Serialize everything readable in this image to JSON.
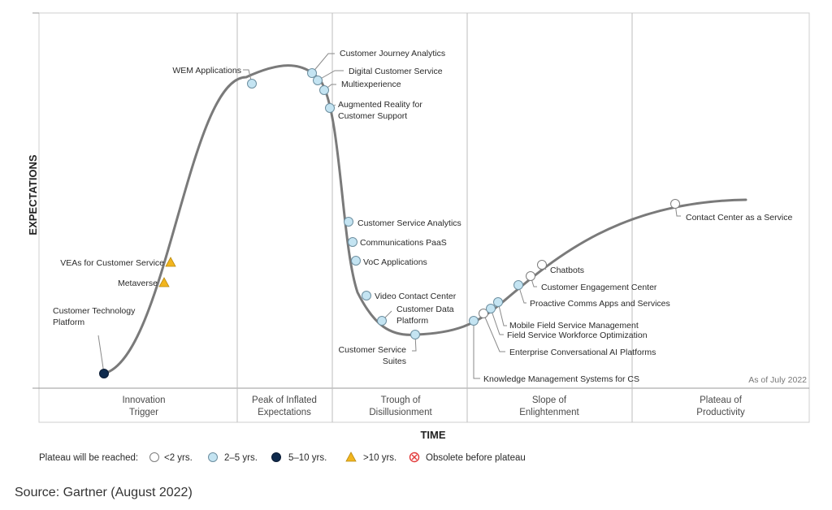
{
  "chart_data": {
    "type": "scatter",
    "title": "",
    "ylabel": "EXPECTATIONS",
    "xlabel": "TIME",
    "as_of": "As of July 2022",
    "phases": [
      {
        "lines": [
          "Innovation",
          "Trigger"
        ]
      },
      {
        "lines": [
          "Peak of Inflated",
          "Expectations"
        ]
      },
      {
        "lines": [
          "Trough of",
          "Disillusionment"
        ]
      },
      {
        "lines": [
          "Slope of",
          "Enlightenment"
        ]
      },
      {
        "lines": [
          "Plateau of",
          "Productivity"
        ]
      }
    ],
    "points": [
      {
        "name": [
          "Customer Technology",
          "Platform"
        ],
        "category": "5-10"
      },
      {
        "name": [
          "Metaverse"
        ],
        "category": "10+"
      },
      {
        "name": [
          "VEAs for Customer Service"
        ],
        "category": "10+"
      },
      {
        "name": [
          "WEM Applications"
        ],
        "category": "2-5"
      },
      {
        "name": [
          "Customer Journey Analytics"
        ],
        "category": "2-5"
      },
      {
        "name": [
          "Digital Customer Service"
        ],
        "category": "2-5"
      },
      {
        "name": [
          "Multiexperience"
        ],
        "category": "2-5"
      },
      {
        "name": [
          "Augmented Reality for",
          "Customer Support"
        ],
        "category": "2-5"
      },
      {
        "name": [
          "Customer Service Analytics"
        ],
        "category": "2-5"
      },
      {
        "name": [
          "Communications PaaS"
        ],
        "category": "2-5"
      },
      {
        "name": [
          "VoC Applications"
        ],
        "category": "2-5"
      },
      {
        "name": [
          "Video Contact Center"
        ],
        "category": "2-5"
      },
      {
        "name": [
          "Customer Data",
          "Platform"
        ],
        "category": "2-5"
      },
      {
        "name": [
          "Customer Service",
          "Suites"
        ],
        "category": "2-5"
      },
      {
        "name": [
          "Knowledge Management Systems for CS"
        ],
        "category": "2-5"
      },
      {
        "name": [
          "Enterprise Conversational AI Platforms"
        ],
        "category": "<2"
      },
      {
        "name": [
          "Field Service Workforce Optimization"
        ],
        "category": "2-5"
      },
      {
        "name": [
          "Mobile Field Service Management"
        ],
        "category": "2-5"
      },
      {
        "name": [
          "Proactive Comms Apps and Services"
        ],
        "category": "2-5"
      },
      {
        "name": [
          "Customer Engagement Center"
        ],
        "category": "<2"
      },
      {
        "name": [
          "Chatbots"
        ],
        "category": "<2"
      },
      {
        "name": [
          "Contact Center as a Service"
        ],
        "category": "<2"
      }
    ]
  },
  "legend": {
    "title": "Plateau will be reached:",
    "items": [
      {
        "key": "<2",
        "label": "<2 yrs."
      },
      {
        "key": "2-5",
        "label": "2–5 yrs."
      },
      {
        "key": "5-10",
        "label": "5–10 yrs."
      },
      {
        "key": "10+",
        "label": ">10 yrs."
      },
      {
        "key": "obsolete",
        "label": "Obsolete before plateau"
      }
    ]
  },
  "colors": {
    "lt2": "#ffffff",
    "2-5": "#c4e4f2",
    "5-10": "#0f2a4d",
    "10+": "#f2b51e",
    "obsolete": "#e23b3b",
    "curve": "#7a7a7a",
    "frame": "#cfcfcf"
  },
  "source": "Source: Gartner (August 2022)"
}
